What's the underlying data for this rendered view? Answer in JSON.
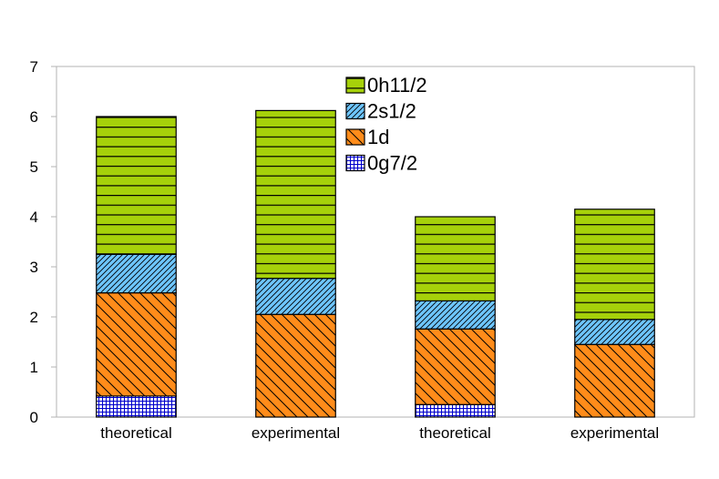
{
  "chart_data": {
    "type": "bar",
    "stacked": true,
    "title": "",
    "xlabel": "",
    "ylabel": "",
    "categories": [
      "theoretical",
      "experimental",
      "theoretical",
      "experimental"
    ],
    "ylim": [
      0,
      7
    ],
    "yticks": [
      "0",
      "1",
      "2",
      "3",
      "4",
      "5",
      "6",
      "7"
    ],
    "grid": false,
    "legend_position": "top-center",
    "series": [
      {
        "name": "0g7/2",
        "values": [
          0.42,
          0.0,
          0.25,
          0.0
        ],
        "color": "#0000cc",
        "pattern": "crosshatch"
      },
      {
        "name": "1d",
        "values": [
          2.06,
          2.05,
          1.51,
          1.45
        ],
        "color": "#ff8c1a",
        "pattern": "back-diagonal"
      },
      {
        "name": "2s1/2",
        "values": [
          0.77,
          0.72,
          0.56,
          0.5
        ],
        "color": "#6ec6ff",
        "pattern": "forward-diagonal"
      },
      {
        "name": "0h11/2",
        "values": [
          2.75,
          3.35,
          1.68,
          2.2
        ],
        "color": "#a6d10a",
        "pattern": "horizontal"
      }
    ],
    "legend_order": [
      "0h11/2",
      "2s1/2",
      "1d",
      "0g7/2"
    ]
  }
}
